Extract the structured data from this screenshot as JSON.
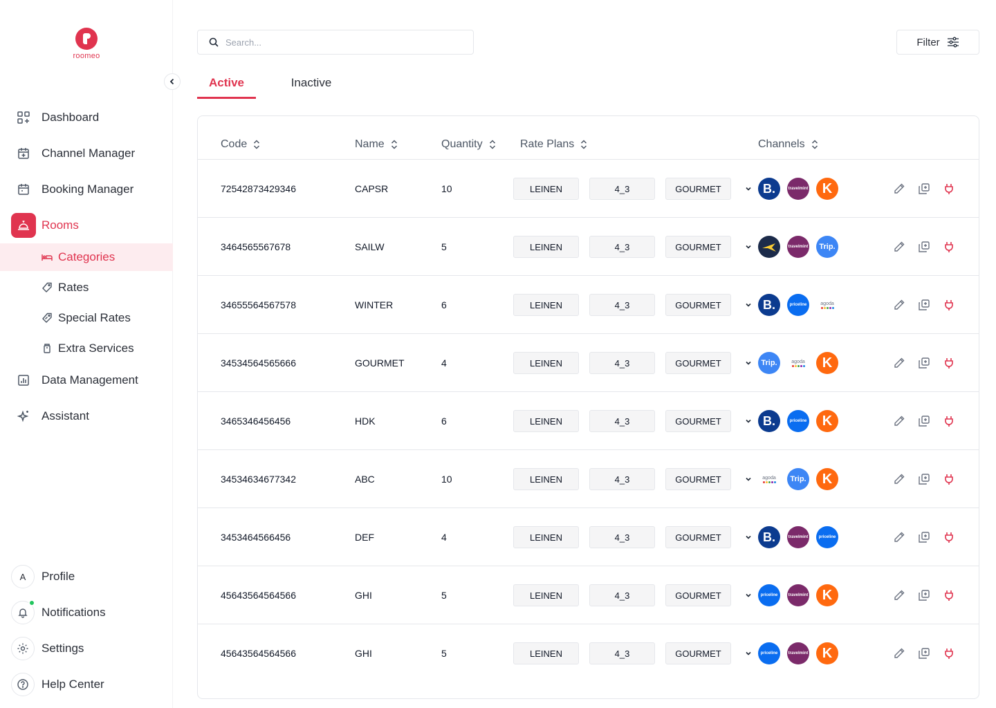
{
  "app": {
    "logo_text": "roomeo"
  },
  "sidebar": {
    "nav": [
      {
        "label": "Dashboard",
        "icon": "dashboard-icon"
      },
      {
        "label": "Channel Manager",
        "icon": "calendar-plus-icon"
      },
      {
        "label": "Booking Manager",
        "icon": "calendar-icon"
      },
      {
        "label": "Rooms",
        "icon": "service-bell-icon",
        "active": true
      },
      {
        "label": "Data Management",
        "icon": "bar-chart-icon"
      },
      {
        "label": "Assistant",
        "icon": "sparkle-icon"
      }
    ],
    "sub": [
      {
        "label": "Categories",
        "icon": "bed-icon",
        "active": true
      },
      {
        "label": "Rates",
        "icon": "tag-icon"
      },
      {
        "label": "Special Rates",
        "icon": "special-tag-icon"
      },
      {
        "label": "Extra Services",
        "icon": "cup-icon"
      }
    ],
    "bottom": [
      {
        "label": "Profile",
        "avatar": "A"
      },
      {
        "label": "Notifications"
      },
      {
        "label": "Settings"
      },
      {
        "label": "Help Center"
      }
    ]
  },
  "search": {
    "placeholder": "Search..."
  },
  "filter": {
    "label": "Filter"
  },
  "tabs": [
    {
      "label": "Active",
      "active": true
    },
    {
      "label": "Inactive"
    }
  ],
  "table": {
    "headers": [
      "Code",
      "Name",
      "Quantity",
      "Rate Plans",
      "Channels"
    ],
    "rows": [
      {
        "code": "72542873429346",
        "name": "CAPSR",
        "qty": "10",
        "rate_plans": [
          "LEINEN",
          "4_3",
          "GOURMET"
        ],
        "channels": [
          "booking",
          "travelmint",
          "kayak"
        ]
      },
      {
        "code": "3464565567678",
        "name": "SAILW",
        "qty": "5",
        "rate_plans": [
          "LEINEN",
          "4_3",
          "GOURMET"
        ],
        "channels": [
          "expedia",
          "travelmint",
          "trip"
        ]
      },
      {
        "code": "34655564567578",
        "name": "WINTER",
        "qty": "6",
        "rate_plans": [
          "LEINEN",
          "4_3",
          "GOURMET"
        ],
        "channels": [
          "booking",
          "priceline",
          "agoda"
        ]
      },
      {
        "code": "34534564565666",
        "name": "GOURMET",
        "qty": "4",
        "rate_plans": [
          "LEINEN",
          "4_3",
          "GOURMET"
        ],
        "channels": [
          "trip",
          "agoda",
          "kayak"
        ]
      },
      {
        "code": "3465346456456",
        "name": "HDK",
        "qty": "6",
        "rate_plans": [
          "LEINEN",
          "4_3",
          "GOURMET"
        ],
        "channels": [
          "booking",
          "priceline",
          "kayak"
        ]
      },
      {
        "code": "34534634677342",
        "name": "ABC",
        "qty": "10",
        "rate_plans": [
          "LEINEN",
          "4_3",
          "GOURMET"
        ],
        "channels": [
          "agoda",
          "trip",
          "kayak"
        ]
      },
      {
        "code": "3453464566456",
        "name": "DEF",
        "qty": "4",
        "rate_plans": [
          "LEINEN",
          "4_3",
          "GOURMET"
        ],
        "channels": [
          "booking",
          "travelmint",
          "priceline"
        ]
      },
      {
        "code": "45643564564566",
        "name": "GHI",
        "qty": "5",
        "rate_plans": [
          "LEINEN",
          "4_3",
          "GOURMET"
        ],
        "channels": [
          "priceline",
          "travelmint",
          "kayak"
        ]
      },
      {
        "code": "45643564564566",
        "name": "GHI",
        "qty": "5",
        "rate_plans": [
          "LEINEN",
          "4_3",
          "GOURMET"
        ],
        "channels": [
          "priceline",
          "travelmint",
          "kayak"
        ]
      }
    ]
  },
  "channel_logos": {
    "booking": "B.",
    "travelmint": "travelmint",
    "kayak": "K",
    "trip": "Trip.",
    "priceline": "priceline",
    "agoda": "agoda"
  },
  "colors": {
    "accent": "#e0344f",
    "accent_soft": "#fdecef",
    "online": "#22c55e",
    "action_red": "#e0344f"
  }
}
